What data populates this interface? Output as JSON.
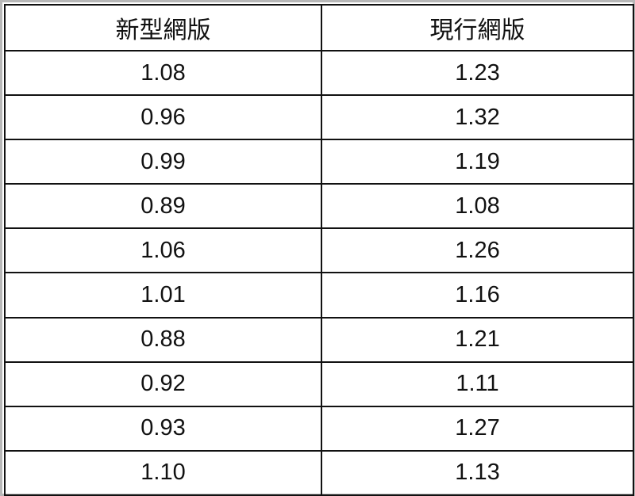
{
  "table": {
    "headers": [
      "新型網版",
      "現行網版"
    ],
    "rows": [
      [
        "1.08",
        "1.23"
      ],
      [
        "0.96",
        "1.32"
      ],
      [
        "0.99",
        "1.19"
      ],
      [
        "0.89",
        "1.08"
      ],
      [
        "1.06",
        "1.26"
      ],
      [
        "1.01",
        "1.16"
      ],
      [
        "0.88",
        "1.21"
      ],
      [
        "0.92",
        "1.11"
      ],
      [
        "0.93",
        "1.27"
      ],
      [
        "1.10",
        "1.13"
      ]
    ]
  }
}
